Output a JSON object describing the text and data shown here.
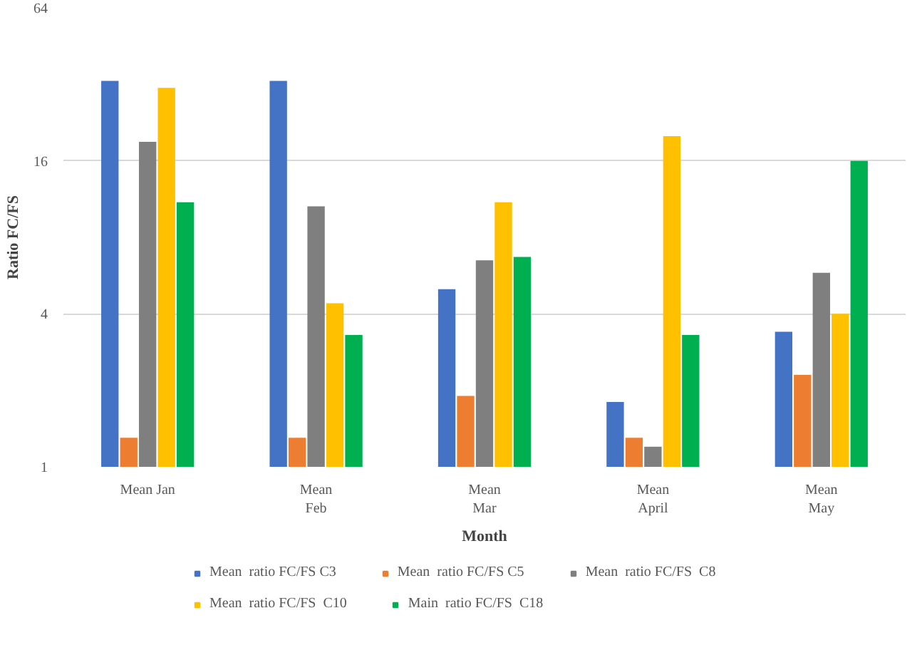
{
  "chart_data": {
    "type": "bar",
    "xlabel": "Month",
    "ylabel": "Ratio FC/FS",
    "categories": [
      "Mean Jan",
      "Mean\nFeb",
      "Mean\nMar",
      "Mean\nApril",
      "Mean\nMay"
    ],
    "series": [
      {
        "name": "Mean  ratio FC/FS C3",
        "color": "#4472c4",
        "values": [
          33,
          33,
          5.0,
          1.8,
          3.4
        ]
      },
      {
        "name": "Mean  ratio FC/FS C5",
        "color": "#ed7d31",
        "values": [
          1.3,
          1.3,
          1.9,
          1.3,
          2.3
        ]
      },
      {
        "name": "Mean  ratio FC/FS  C8",
        "color": "#7f7f7f",
        "values": [
          19,
          10.6,
          6.5,
          1.2,
          5.8
        ]
      },
      {
        "name": "Mean  ratio FC/FS  C10",
        "color": "#ffc000",
        "values": [
          31,
          4.4,
          11,
          20,
          4.0
        ]
      },
      {
        "name": "Main  ratio FC/FS  C18",
        "color": "#00b050",
        "values": [
          11,
          3.3,
          6.7,
          3.3,
          16
        ]
      }
    ],
    "log": true,
    "ylim": [
      1,
      64
    ],
    "yticks": [
      1,
      4,
      16,
      64
    ],
    "grid": "y",
    "legend": "bottom"
  }
}
